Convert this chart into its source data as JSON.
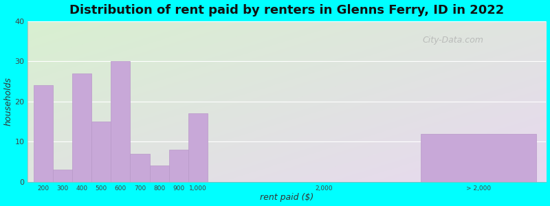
{
  "title": "Distribution of rent paid by renters in Glenns Ferry, ID in 2022",
  "xlabel": "rent paid ($)",
  "ylabel": "households",
  "background_outer": "#00FFFF",
  "background_inner_top_left": "#d8f0d0",
  "background_inner_bottom_right": "#e8d8f0",
  "bar_color": "#c8a8d8",
  "bar_edge_color": "#b898c8",
  "categories": [
    "200",
    "300",
    "400",
    "500",
    "600",
    "700",
    "800",
    "900",
    "1,000",
    "2,000",
    "> 2,000"
  ],
  "values": [
    24,
    3,
    27,
    15,
    30,
    7,
    4,
    8,
    17,
    0,
    12
  ],
  "ylim": [
    0,
    40
  ],
  "yticks": [
    0,
    10,
    20,
    30,
    40
  ],
  "watermark": "City-Data.com",
  "title_fontsize": 13,
  "axis_label_fontsize": 9,
  "x_positions": [
    0,
    1,
    2,
    3,
    4,
    5,
    6,
    7,
    8,
    14.5,
    20
  ],
  "bar_widths": [
    1,
    1,
    1,
    1,
    1,
    1,
    1,
    1,
    1,
    1,
    6
  ],
  "xlim": [
    -0.3,
    26.5
  ],
  "tick_x": [
    0.5,
    1.5,
    2.5,
    3.5,
    4.5,
    5.5,
    6.5,
    7.5,
    8.5,
    15.0,
    23.0
  ]
}
